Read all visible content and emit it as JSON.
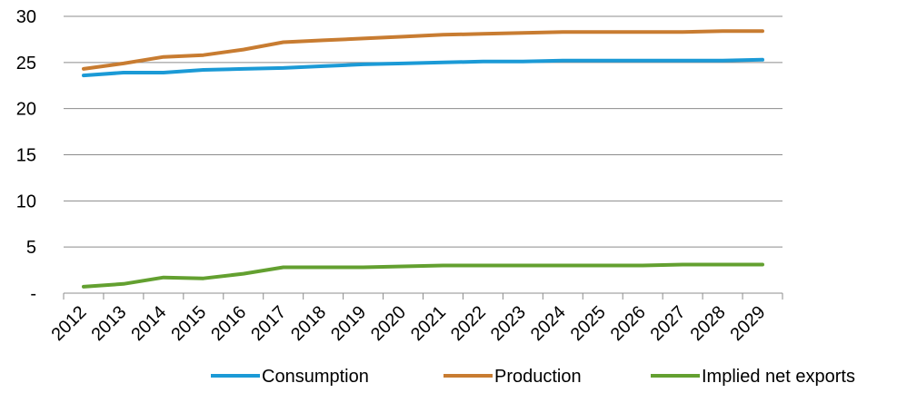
{
  "chart_data": {
    "type": "line",
    "title": "",
    "xlabel": "",
    "ylabel": "",
    "categories": [
      "2012",
      "2013",
      "2014",
      "2015",
      "2016",
      "2017",
      "2018",
      "2019",
      "2020",
      "2021",
      "2022",
      "2023",
      "2024",
      "2025",
      "2026",
      "2027",
      "2028",
      "2029"
    ],
    "ylim": [
      0,
      30
    ],
    "yticks": [
      {
        "value": 0,
        "label": "-"
      },
      {
        "value": 5,
        "label": "5"
      },
      {
        "value": 10,
        "label": "10"
      },
      {
        "value": 15,
        "label": "15"
      },
      {
        "value": 20,
        "label": "20"
      },
      {
        "value": 25,
        "label": "25"
      },
      {
        "value": 30,
        "label": "30"
      }
    ],
    "grid": "horizontal",
    "legend_position": "bottom",
    "series": [
      {
        "name": "Consumption",
        "color": "#1b9ad6",
        "values": [
          23.6,
          23.9,
          23.9,
          24.2,
          24.3,
          24.4,
          24.6,
          24.8,
          24.9,
          25.0,
          25.1,
          25.1,
          25.2,
          25.2,
          25.2,
          25.2,
          25.2,
          25.3
        ]
      },
      {
        "name": "Production",
        "color": "#c87c31",
        "values": [
          24.3,
          24.9,
          25.6,
          25.8,
          26.4,
          27.2,
          27.4,
          27.6,
          27.8,
          28.0,
          28.1,
          28.2,
          28.3,
          28.3,
          28.3,
          28.3,
          28.4,
          28.4
        ]
      },
      {
        "name": "Implied net exports",
        "color": "#63a030",
        "values": [
          0.7,
          1.0,
          1.7,
          1.6,
          2.1,
          2.8,
          2.8,
          2.8,
          2.9,
          3.0,
          3.0,
          3.0,
          3.0,
          3.0,
          3.0,
          3.1,
          3.1,
          3.1
        ]
      }
    ]
  }
}
